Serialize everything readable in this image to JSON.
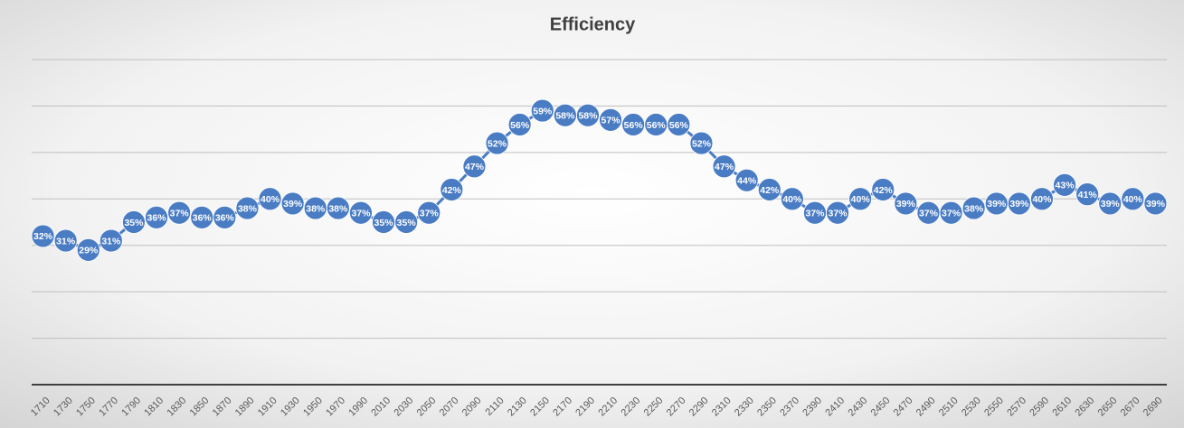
{
  "chart_data": {
    "type": "line",
    "title": "Efficiency",
    "categories": [
      "1710",
      "1730",
      "1750",
      "1770",
      "1790",
      "1810",
      "1830",
      "1850",
      "1870",
      "1890",
      "1910",
      "1930",
      "1950",
      "1970",
      "1990",
      "2010",
      "2030",
      "2050",
      "2070",
      "2090",
      "2110",
      "2130",
      "2150",
      "2170",
      "2190",
      "2210",
      "2230",
      "2250",
      "2270",
      "2290",
      "2310",
      "2330",
      "2350",
      "2370",
      "2390",
      "2410",
      "2430",
      "2450",
      "2470",
      "2490",
      "2510",
      "2530",
      "2550",
      "2570",
      "2590",
      "2610",
      "2630",
      "2650",
      "2670",
      "2690"
    ],
    "series": [
      {
        "name": "Efficiency",
        "color": "#4a7cc4",
        "values": [
          32,
          31,
          29,
          31,
          35,
          36,
          37,
          36,
          36,
          38,
          40,
          39,
          38,
          38,
          37,
          35,
          35,
          37,
          42,
          47,
          52,
          56,
          59,
          58,
          58,
          57,
          56,
          56,
          56,
          52,
          47,
          44,
          42,
          40,
          37,
          37,
          40,
          42,
          39,
          37,
          37,
          38,
          39,
          39,
          40,
          43,
          41,
          39,
          40,
          39
        ],
        "value_labels": [
          "32%",
          "31%",
          "29%",
          "31%",
          "35%",
          "36%",
          "37%",
          "36%",
          "36%",
          "38%",
          "40%",
          "39%",
          "38%",
          "38%",
          "37%",
          "35%",
          "35%",
          "37%",
          "42%",
          "47%",
          "52%",
          "56%",
          "59%",
          "58%",
          "58%",
          "57%",
          "56%",
          "56%",
          "56%",
          "52%",
          "47%",
          "44%",
          "42%",
          "40%",
          "37%",
          "37%",
          "40%",
          "42%",
          "39%",
          "37%",
          "37%",
          "38%",
          "39%",
          "39%",
          "40%",
          "43%",
          "41%",
          "39%",
          "40%",
          "39%"
        ]
      }
    ],
    "ylim": [
      0,
      70
    ],
    "yticks": [
      0,
      10,
      20,
      30,
      40,
      50,
      60,
      70
    ],
    "grid": true
  }
}
